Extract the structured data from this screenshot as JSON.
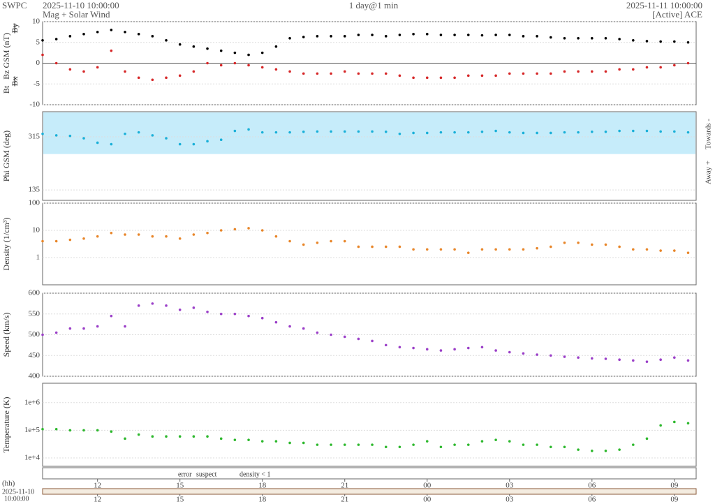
{
  "header": {
    "org": "SWPC",
    "start": "2025-11-10 10:00:00",
    "product": "Mag + Solar Wind",
    "span": "1 day@1 min",
    "end": "2025-11-11 10:00:00",
    "source": "[Active] ACE"
  },
  "time_axis": {
    "label": "(hh)",
    "start_date": "2025-11-10",
    "start_time": "10:00:00",
    "categories": [
      null,
      null,
      null,
      null,
      "12",
      null,
      null,
      null,
      null,
      null,
      "15",
      null,
      null,
      null,
      null,
      null,
      "18",
      null,
      null,
      null,
      null,
      null,
      "21",
      null,
      null,
      null,
      null,
      null,
      "00",
      null,
      null,
      null,
      null,
      null,
      "03",
      null,
      null,
      null,
      null,
      null,
      "06",
      null,
      null,
      null,
      null,
      null,
      "09",
      null
    ]
  },
  "status": [
    {
      "name": "error",
      "color": "#cc2222"
    },
    {
      "name": "suspect",
      "color": "#e8c020"
    },
    {
      "name": "density < 1",
      "color": "#e07020"
    }
  ],
  "chart_data": [
    {
      "type": "scatter",
      "ylim": [
        -10,
        10
      ],
      "yticks": [
        -10,
        -5,
        0,
        5,
        10
      ],
      "grid": true,
      "disabled_series": [
        {
          "name": "Bx",
          "color": "#8e3fc8"
        },
        {
          "name": "By",
          "color": "#1ab0d8"
        }
      ],
      "series": [
        {
          "name": "Bt",
          "color": "#000000",
          "values": [
            5.5,
            5.8,
            6.5,
            7,
            7.5,
            8,
            7.5,
            7,
            6.5,
            5.5,
            4.5,
            4,
            3.5,
            3,
            2.5,
            2,
            2.5,
            4,
            6,
            6.3,
            6.5,
            6.5,
            6.5,
            6.8,
            6.8,
            6.5,
            6.8,
            7,
            7,
            6.8,
            6.8,
            6.8,
            6.7,
            6.8,
            6.8,
            6.5,
            6.5,
            6.2,
            6,
            6,
            6,
            6,
            5.8,
            5.5,
            5.3,
            5.2,
            5.2,
            5
          ]
        },
        {
          "name": "Bz GSM (nT)",
          "color": "#d62728",
          "values": [
            2,
            0,
            -1.5,
            -2,
            -1,
            3,
            -2,
            -3.5,
            -4,
            -3.5,
            -3,
            -2,
            0,
            -0.5,
            0,
            -0.5,
            -1,
            -1.5,
            -2,
            -2.5,
            -2.5,
            -2.5,
            -2,
            -2.5,
            -2.5,
            -2.5,
            -3,
            -3.5,
            -3.5,
            -3.5,
            -3.5,
            -3,
            -3,
            -3,
            -2.5,
            -2.5,
            -2.5,
            -2.5,
            -2,
            -2,
            -2,
            -2,
            -1.5,
            -1.5,
            -1,
            -1,
            -0.5,
            0
          ]
        }
      ]
    },
    {
      "type": "scatter",
      "ylim": [
        100,
        400
      ],
      "yticks": [
        135,
        315
      ],
      "grid": true,
      "ylabel": "Phi GSM (deg)",
      "right_labels": [
        "Towards -",
        "Away +"
      ],
      "series": [
        {
          "color": "#1ab0d8",
          "values": [
            325,
            320,
            318,
            310,
            295,
            290,
            325,
            330,
            320,
            310,
            290,
            290,
            300,
            305,
            335,
            340,
            330,
            330,
            330,
            332,
            333,
            333,
            333,
            333,
            333,
            332,
            325,
            328,
            328,
            330,
            330,
            330,
            332,
            335,
            330,
            328,
            328,
            328,
            330,
            330,
            332,
            332,
            335,
            335,
            335,
            333,
            333,
            330
          ]
        }
      ]
    },
    {
      "type": "scatter",
      "log": true,
      "ylim": [
        0.1,
        100
      ],
      "yticks": [
        1,
        10,
        100
      ],
      "grid": true,
      "ylabel": "Density (1/cm³)",
      "series": [
        {
          "color": "#e8862a",
          "values": [
            4,
            4,
            4.5,
            5,
            6,
            8,
            7,
            7,
            6,
            6,
            5,
            7,
            8,
            10,
            11,
            12,
            10,
            6,
            4,
            3,
            3.5,
            4,
            4,
            2.5,
            2.5,
            2.5,
            2.5,
            2,
            2,
            2,
            2,
            1.5,
            2,
            2,
            2,
            2,
            2.2,
            2.5,
            3.5,
            3.5,
            3,
            3,
            2.5,
            2,
            2,
            1.8,
            1.8,
            1.5
          ]
        }
      ]
    },
    {
      "type": "scatter",
      "ylim": [
        400,
        600
      ],
      "yticks": [
        400,
        450,
        500,
        550,
        600
      ],
      "grid": true,
      "ylabel": "Speed (km/s)",
      "series": [
        {
          "color": "#9b3fc8",
          "values": [
            500,
            505,
            515,
            515,
            520,
            545,
            520,
            570,
            575,
            570,
            560,
            565,
            555,
            550,
            550,
            545,
            540,
            530,
            520,
            515,
            505,
            500,
            495,
            490,
            485,
            475,
            470,
            468,
            465,
            462,
            465,
            468,
            470,
            462,
            458,
            455,
            452,
            450,
            447,
            445,
            443,
            442,
            440,
            438,
            435,
            440,
            445,
            438
          ]
        }
      ]
    },
    {
      "type": "scatter",
      "log": true,
      "ylim": [
        5000,
        5000000
      ],
      "yticks": [
        {
          "value": 10000,
          "label": "1e+4"
        },
        {
          "value": 100000,
          "label": "1e+5"
        },
        {
          "value": 1000000,
          "label": "1e+6"
        }
      ],
      "grid": true,
      "ylabel": "Temperature (K)",
      "series": [
        {
          "color": "#2db82d",
          "values": [
            110000,
            110000,
            100000,
            100000,
            100000,
            90000,
            50000,
            70000,
            60000,
            60000,
            60000,
            60000,
            60000,
            50000,
            45000,
            45000,
            40000,
            40000,
            35000,
            35000,
            30000,
            30000,
            30000,
            30000,
            30000,
            25000,
            25000,
            30000,
            40000,
            25000,
            30000,
            30000,
            40000,
            45000,
            40000,
            30000,
            30000,
            25000,
            25000,
            20000,
            18000,
            18000,
            20000,
            30000,
            50000,
            150000,
            200000,
            180000
          ]
        }
      ]
    }
  ]
}
